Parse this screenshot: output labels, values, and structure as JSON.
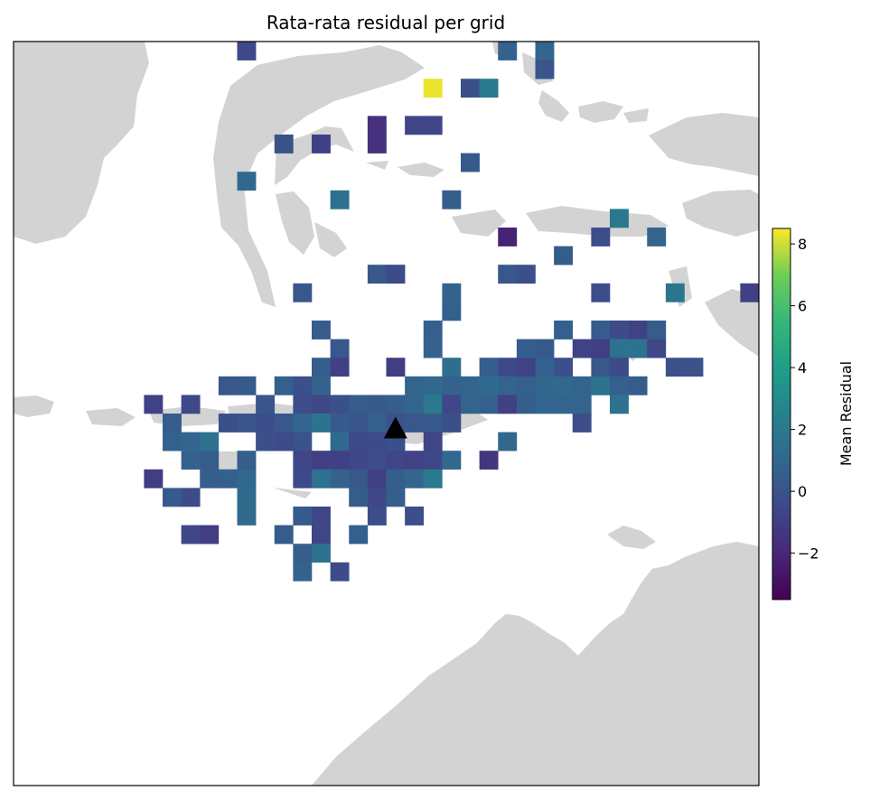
{
  "chart_data": {
    "type": "heatmap",
    "title": "Rata-rata residual per grid",
    "basemap": "land-sea",
    "colormap": "viridis",
    "land_color": "#d3d3d3",
    "colorbar": {
      "label": "Mean Residual",
      "range": [
        -3.5,
        8.5
      ],
      "ticks": [
        -2,
        0,
        2,
        4,
        6,
        8
      ],
      "tick_labels": [
        "−2",
        "0",
        "2",
        "4",
        "6",
        "8"
      ]
    },
    "grid": {
      "cols": 40,
      "rows": 40
    },
    "cells": [
      [
        12,
        0,
        -0.5
      ],
      [
        26,
        0,
        0.7
      ],
      [
        28,
        0,
        0.9
      ],
      [
        28,
        1,
        0.1
      ],
      [
        22,
        2,
        8.3
      ],
      [
        24,
        2,
        -0.2
      ],
      [
        25,
        2,
        2.0
      ],
      [
        19,
        4,
        -1.6
      ],
      [
        21,
        4,
        -0.7
      ],
      [
        22,
        4,
        -0.6
      ],
      [
        14,
        5,
        -0.1
      ],
      [
        16,
        5,
        -0.9
      ],
      [
        19,
        5,
        -1.6
      ],
      [
        24,
        6,
        0.3
      ],
      [
        12,
        7,
        1.0
      ],
      [
        17,
        8,
        1.5
      ],
      [
        23,
        8,
        0.5
      ],
      [
        32,
        9,
        1.9
      ],
      [
        26,
        10,
        -2.2
      ],
      [
        31,
        10,
        -0.3
      ],
      [
        34,
        10,
        0.8
      ],
      [
        29,
        11,
        0.4
      ],
      [
        19,
        12,
        0.2
      ],
      [
        20,
        12,
        -0.4
      ],
      [
        26,
        12,
        0.2
      ],
      [
        27,
        12,
        -0.2
      ],
      [
        15,
        13,
        0.2
      ],
      [
        23,
        13,
        0.7
      ],
      [
        31,
        13,
        -0.3
      ],
      [
        35,
        13,
        1.8
      ],
      [
        39,
        13,
        -0.9
      ],
      [
        23,
        14,
        0.6
      ],
      [
        16,
        15,
        0.4
      ],
      [
        22,
        15,
        0.6
      ],
      [
        29,
        15,
        0.6
      ],
      [
        31,
        15,
        0.4
      ],
      [
        32,
        15,
        -0.4
      ],
      [
        33,
        15,
        -0.8
      ],
      [
        34,
        15,
        0.4
      ],
      [
        17,
        16,
        0.2
      ],
      [
        22,
        16,
        0.7
      ],
      [
        27,
        16,
        0.5
      ],
      [
        28,
        16,
        0.3
      ],
      [
        30,
        16,
        -0.8
      ],
      [
        31,
        16,
        -1.0
      ],
      [
        32,
        16,
        1.6
      ],
      [
        33,
        16,
        1.6
      ],
      [
        34,
        16,
        -0.6
      ],
      [
        16,
        17,
        0.5
      ],
      [
        17,
        17,
        -0.9
      ],
      [
        20,
        17,
        -1.0
      ],
      [
        23,
        17,
        1.4
      ],
      [
        25,
        17,
        0.5
      ],
      [
        26,
        17,
        -0.5
      ],
      [
        27,
        17,
        -0.8
      ],
      [
        28,
        17,
        0.6
      ],
      [
        29,
        17,
        -0.2
      ],
      [
        31,
        17,
        0.2
      ],
      [
        32,
        17,
        -0.4
      ],
      [
        35,
        17,
        -0.1
      ],
      [
        36,
        17,
        0.0
      ],
      [
        11,
        18,
        0.2
      ],
      [
        12,
        18,
        0.3
      ],
      [
        14,
        18,
        0.6
      ],
      [
        15,
        18,
        -0.2
      ],
      [
        16,
        18,
        0.7
      ],
      [
        21,
        18,
        0.8
      ],
      [
        22,
        18,
        1.0
      ],
      [
        23,
        18,
        0.7
      ],
      [
        24,
        18,
        0.8
      ],
      [
        25,
        18,
        1.1
      ],
      [
        26,
        18,
        0.8
      ],
      [
        27,
        18,
        0.6
      ],
      [
        28,
        18,
        0.9
      ],
      [
        29,
        18,
        1.0
      ],
      [
        30,
        18,
        0.8
      ],
      [
        31,
        18,
        1.6
      ],
      [
        32,
        18,
        0.6
      ],
      [
        33,
        18,
        0.4
      ],
      [
        7,
        19,
        -0.8
      ],
      [
        9,
        19,
        -0.5
      ],
      [
        13,
        19,
        0.1
      ],
      [
        15,
        19,
        -0.3
      ],
      [
        16,
        19,
        -0.6
      ],
      [
        17,
        19,
        -0.2
      ],
      [
        18,
        19,
        0.4
      ],
      [
        19,
        19,
        0.3
      ],
      [
        20,
        19,
        0.5
      ],
      [
        21,
        19,
        0.8
      ],
      [
        22,
        19,
        2.0
      ],
      [
        23,
        19,
        -0.6
      ],
      [
        24,
        19,
        0.8
      ],
      [
        25,
        19,
        0.6
      ],
      [
        26,
        19,
        -0.9
      ],
      [
        27,
        19,
        0.5
      ],
      [
        28,
        19,
        0.9
      ],
      [
        29,
        19,
        0.8
      ],
      [
        30,
        19,
        0.8
      ],
      [
        32,
        19,
        1.6
      ],
      [
        8,
        20,
        0.4
      ],
      [
        11,
        20,
        -0.2
      ],
      [
        12,
        20,
        0.1
      ],
      [
        13,
        20,
        -0.3
      ],
      [
        14,
        20,
        0.2
      ],
      [
        15,
        20,
        0.8
      ],
      [
        16,
        20,
        1.7
      ],
      [
        17,
        20,
        0.3
      ],
      [
        18,
        20,
        0.1
      ],
      [
        19,
        20,
        0.6
      ],
      [
        20,
        20,
        0.0
      ],
      [
        21,
        20,
        0.2
      ],
      [
        22,
        20,
        0.3
      ],
      [
        23,
        20,
        -0.2
      ],
      [
        30,
        20,
        -0.3
      ],
      [
        8,
        21,
        0.6
      ],
      [
        9,
        21,
        0.9
      ],
      [
        10,
        21,
        1.6
      ],
      [
        13,
        21,
        -0.2
      ],
      [
        14,
        21,
        -0.4
      ],
      [
        15,
        21,
        0.0
      ],
      [
        17,
        21,
        1.1
      ],
      [
        18,
        21,
        -0.5
      ],
      [
        19,
        21,
        -0.4
      ],
      [
        20,
        21,
        -0.2
      ],
      [
        22,
        21,
        -0.7
      ],
      [
        26,
        21,
        1.0
      ],
      [
        9,
        22,
        0.7
      ],
      [
        10,
        22,
        0.4
      ],
      [
        12,
        22,
        0.5
      ],
      [
        15,
        22,
        -0.6
      ],
      [
        16,
        22,
        -1.0
      ],
      [
        17,
        22,
        -0.9
      ],
      [
        18,
        22,
        -0.6
      ],
      [
        19,
        22,
        -0.3
      ],
      [
        20,
        22,
        -0.7
      ],
      [
        21,
        22,
        -0.8
      ],
      [
        22,
        22,
        -0.6
      ],
      [
        23,
        22,
        1.0
      ],
      [
        25,
        22,
        -1.4
      ],
      [
        7,
        23,
        -1.0
      ],
      [
        10,
        23,
        0.5
      ],
      [
        11,
        23,
        0.6
      ],
      [
        12,
        23,
        1.0
      ],
      [
        15,
        23,
        -0.5
      ],
      [
        16,
        23,
        1.6
      ],
      [
        17,
        23,
        0.7
      ],
      [
        18,
        23,
        0.2
      ],
      [
        19,
        23,
        -0.9
      ],
      [
        20,
        23,
        0.5
      ],
      [
        21,
        23,
        0.9
      ],
      [
        22,
        23,
        2.0
      ],
      [
        8,
        24,
        0.3
      ],
      [
        9,
        24,
        -0.4
      ],
      [
        12,
        24,
        1.2
      ],
      [
        18,
        24,
        0.4
      ],
      [
        19,
        24,
        -0.6
      ],
      [
        20,
        24,
        0.5
      ],
      [
        12,
        25,
        1.2
      ],
      [
        15,
        25,
        0.3
      ],
      [
        16,
        25,
        -0.7
      ],
      [
        19,
        25,
        -0.3
      ],
      [
        21,
        25,
        -0.2
      ],
      [
        9,
        26,
        -0.6
      ],
      [
        10,
        26,
        -1.0
      ],
      [
        14,
        26,
        0.4
      ],
      [
        16,
        26,
        -0.7
      ],
      [
        18,
        26,
        0.6
      ],
      [
        15,
        27,
        0.5
      ],
      [
        16,
        27,
        1.6
      ],
      [
        15,
        28,
        0.7
      ],
      [
        17,
        28,
        -0.4
      ]
    ],
    "markers": [
      {
        "name": "station",
        "symbol": "triangle",
        "color": "#000000",
        "col": 20.0,
        "row": 20.3
      }
    ]
  }
}
